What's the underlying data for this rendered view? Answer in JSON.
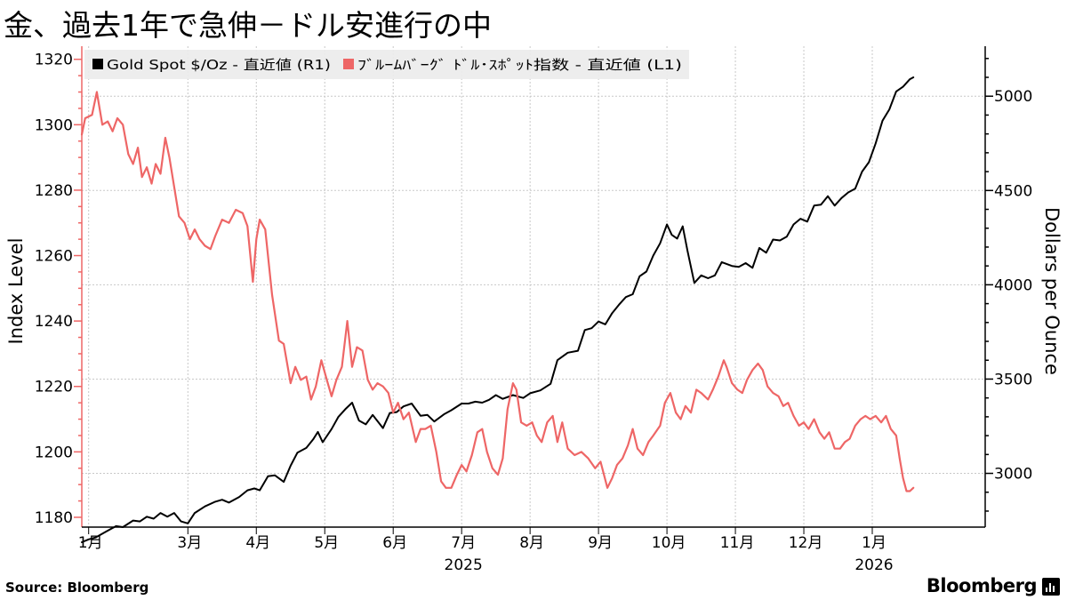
{
  "title": "金、過去1年で急伸－ドル安進行の中",
  "source": "Source:  Bloomberg",
  "brand": "Bloomberg",
  "chart_data": {
    "type": "line",
    "legend_position": "top-left",
    "grid": true,
    "ylabel_left": "Index Level",
    "ylabel_right": "Dollars per Ounce",
    "ylim_left": [
      1177,
      1324
    ],
    "ylim_right": [
      2715,
      5265
    ],
    "yticks_left": [
      1180,
      1200,
      1220,
      1240,
      1260,
      1280,
      1300,
      1320
    ],
    "yticks_right": [
      3000,
      3500,
      4000,
      4500,
      5000
    ],
    "xlim": [
      0,
      13.2
    ],
    "x_units": "months from early Jan 2025",
    "month_ticks": [
      {
        "label": "1月",
        "x": 0.1
      },
      {
        "label": "3月",
        "x": 1.55
      },
      {
        "label": "4月",
        "x": 2.55
      },
      {
        "label": "5月",
        "x": 3.55
      },
      {
        "label": "6月",
        "x": 4.55
      },
      {
        "label": "7月",
        "x": 5.55
      },
      {
        "label": "8月",
        "x": 6.55
      },
      {
        "label": "9月",
        "x": 7.55
      },
      {
        "label": "10月",
        "x": 8.55
      },
      {
        "label": "11月",
        "x": 9.55
      },
      {
        "label": "12月",
        "x": 10.55
      },
      {
        "label": "1月",
        "x": 11.55
      }
    ],
    "year_labels": [
      {
        "label": "2025",
        "x": 5.55
      },
      {
        "label": "2026",
        "x": 11.55
      }
    ],
    "series": [
      {
        "name": "Gold Spot $/Oz - 直近値 (R1)",
        "axis": "right",
        "color": "#000000",
        "points": [
          [
            0.0,
            2635
          ],
          [
            0.1,
            2650
          ],
          [
            0.2,
            2660
          ],
          [
            0.35,
            2690
          ],
          [
            0.5,
            2720
          ],
          [
            0.6,
            2715
          ],
          [
            0.75,
            2750
          ],
          [
            0.85,
            2745
          ],
          [
            0.95,
            2770
          ],
          [
            1.05,
            2760
          ],
          [
            1.15,
            2790
          ],
          [
            1.25,
            2770
          ],
          [
            1.35,
            2790
          ],
          [
            1.45,
            2745
          ],
          [
            1.55,
            2735
          ],
          [
            1.65,
            2790
          ],
          [
            1.8,
            2825
          ],
          [
            1.95,
            2850
          ],
          [
            2.05,
            2860
          ],
          [
            2.15,
            2845
          ],
          [
            2.3,
            2875
          ],
          [
            2.42,
            2910
          ],
          [
            2.52,
            2920
          ],
          [
            2.6,
            2910
          ],
          [
            2.72,
            2985
          ],
          [
            2.82,
            2990
          ],
          [
            2.95,
            2955
          ],
          [
            3.05,
            3040
          ],
          [
            3.15,
            3110
          ],
          [
            3.28,
            3135
          ],
          [
            3.38,
            3180
          ],
          [
            3.45,
            3220
          ],
          [
            3.52,
            3165
          ],
          [
            3.65,
            3235
          ],
          [
            3.75,
            3300
          ],
          [
            3.85,
            3340
          ],
          [
            3.95,
            3375
          ],
          [
            4.05,
            3280
          ],
          [
            4.15,
            3260
          ],
          [
            4.25,
            3310
          ],
          [
            4.4,
            3240
          ],
          [
            4.5,
            3320
          ],
          [
            4.6,
            3325
          ],
          [
            4.7,
            3355
          ],
          [
            4.82,
            3370
          ],
          [
            4.95,
            3305
          ],
          [
            5.05,
            3310
          ],
          [
            5.15,
            3275
          ],
          [
            5.3,
            3315
          ],
          [
            5.4,
            3335
          ],
          [
            5.55,
            3370
          ],
          [
            5.65,
            3370
          ],
          [
            5.75,
            3380
          ],
          [
            5.85,
            3375
          ],
          [
            5.95,
            3390
          ],
          [
            6.05,
            3415
          ],
          [
            6.15,
            3395
          ],
          [
            6.3,
            3415
          ],
          [
            6.45,
            3400
          ],
          [
            6.55,
            3425
          ],
          [
            6.7,
            3440
          ],
          [
            6.85,
            3475
          ],
          [
            6.95,
            3600
          ],
          [
            7.1,
            3640
          ],
          [
            7.25,
            3650
          ],
          [
            7.35,
            3760
          ],
          [
            7.45,
            3770
          ],
          [
            7.55,
            3805
          ],
          [
            7.65,
            3790
          ],
          [
            7.75,
            3850
          ],
          [
            7.85,
            3895
          ],
          [
            7.95,
            3935
          ],
          [
            8.05,
            3950
          ],
          [
            8.15,
            4045
          ],
          [
            8.25,
            4070
          ],
          [
            8.35,
            4155
          ],
          [
            8.45,
            4220
          ],
          [
            8.55,
            4320
          ],
          [
            8.62,
            4265
          ],
          [
            8.7,
            4245
          ],
          [
            8.78,
            4310
          ],
          [
            8.85,
            4180
          ],
          [
            8.95,
            4010
          ],
          [
            9.05,
            4050
          ],
          [
            9.15,
            4035
          ],
          [
            9.25,
            4050
          ],
          [
            9.35,
            4120
          ],
          [
            9.5,
            4100
          ],
          [
            9.6,
            4095
          ],
          [
            9.7,
            4115
          ],
          [
            9.8,
            4090
          ],
          [
            9.9,
            4195
          ],
          [
            10.0,
            4170
          ],
          [
            10.1,
            4240
          ],
          [
            10.2,
            4235
          ],
          [
            10.3,
            4255
          ],
          [
            10.4,
            4320
          ],
          [
            10.5,
            4350
          ],
          [
            10.6,
            4335
          ],
          [
            10.7,
            4420
          ],
          [
            10.8,
            4425
          ],
          [
            10.9,
            4470
          ],
          [
            11.0,
            4420
          ],
          [
            11.1,
            4460
          ],
          [
            11.2,
            4490
          ],
          [
            11.3,
            4510
          ],
          [
            11.4,
            4600
          ],
          [
            11.5,
            4650
          ],
          [
            11.6,
            4750
          ],
          [
            11.7,
            4870
          ],
          [
            11.8,
            4930
          ],
          [
            11.9,
            5025
          ],
          [
            12.0,
            5050
          ],
          [
            12.1,
            5090
          ],
          [
            12.15,
            5100
          ]
        ]
      },
      {
        "name": "ﾌﾞﾙｰﾑﾊﾞｰｸﾞ ﾄﾞﾙ･ｽﾎﾟｯﾄ指数 - 直近値 (L1)",
        "axis": "left",
        "color": "#ee6666",
        "points": [
          [
            0.0,
            1297
          ],
          [
            0.05,
            1302
          ],
          [
            0.15,
            1303
          ],
          [
            0.22,
            1310
          ],
          [
            0.3,
            1300
          ],
          [
            0.38,
            1301
          ],
          [
            0.45,
            1298
          ],
          [
            0.52,
            1302
          ],
          [
            0.6,
            1300
          ],
          [
            0.68,
            1291
          ],
          [
            0.75,
            1288
          ],
          [
            0.82,
            1293
          ],
          [
            0.88,
            1284
          ],
          [
            0.95,
            1287
          ],
          [
            1.02,
            1282
          ],
          [
            1.08,
            1288
          ],
          [
            1.15,
            1285
          ],
          [
            1.22,
            1296
          ],
          [
            1.28,
            1290
          ],
          [
            1.35,
            1281
          ],
          [
            1.42,
            1272
          ],
          [
            1.5,
            1270
          ],
          [
            1.58,
            1265
          ],
          [
            1.65,
            1268
          ],
          [
            1.72,
            1265
          ],
          [
            1.8,
            1263
          ],
          [
            1.88,
            1262
          ],
          [
            1.95,
            1266
          ],
          [
            2.05,
            1271
          ],
          [
            2.15,
            1270
          ],
          [
            2.25,
            1274
          ],
          [
            2.35,
            1273
          ],
          [
            2.42,
            1269
          ],
          [
            2.5,
            1252
          ],
          [
            2.55,
            1265
          ],
          [
            2.6,
            1271
          ],
          [
            2.68,
            1268
          ],
          [
            2.78,
            1248
          ],
          [
            2.88,
            1234
          ],
          [
            2.95,
            1233
          ],
          [
            3.05,
            1221
          ],
          [
            3.12,
            1226
          ],
          [
            3.2,
            1222
          ],
          [
            3.28,
            1223
          ],
          [
            3.35,
            1216
          ],
          [
            3.42,
            1220
          ],
          [
            3.5,
            1228
          ],
          [
            3.58,
            1222
          ],
          [
            3.65,
            1217
          ],
          [
            3.72,
            1222
          ],
          [
            3.8,
            1226
          ],
          [
            3.88,
            1240
          ],
          [
            3.95,
            1226
          ],
          [
            4.02,
            1232
          ],
          [
            4.1,
            1231
          ],
          [
            4.18,
            1222
          ],
          [
            4.25,
            1219
          ],
          [
            4.32,
            1221
          ],
          [
            4.4,
            1220
          ],
          [
            4.48,
            1218
          ],
          [
            4.55,
            1212
          ],
          [
            4.62,
            1215
          ],
          [
            4.7,
            1210
          ],
          [
            4.78,
            1212
          ],
          [
            4.88,
            1203
          ],
          [
            4.95,
            1207
          ],
          [
            5.02,
            1207
          ],
          [
            5.1,
            1208
          ],
          [
            5.18,
            1200
          ],
          [
            5.25,
            1191
          ],
          [
            5.32,
            1189
          ],
          [
            5.4,
            1189
          ],
          [
            5.48,
            1193
          ],
          [
            5.55,
            1196
          ],
          [
            5.62,
            1194
          ],
          [
            5.7,
            1199
          ],
          [
            5.78,
            1206
          ],
          [
            5.85,
            1207
          ],
          [
            5.92,
            1200
          ],
          [
            6.0,
            1195
          ],
          [
            6.08,
            1193
          ],
          [
            6.15,
            1198
          ],
          [
            6.22,
            1213
          ],
          [
            6.3,
            1221
          ],
          [
            6.35,
            1219
          ],
          [
            6.42,
            1209
          ],
          [
            6.5,
            1208
          ],
          [
            6.58,
            1209
          ],
          [
            6.65,
            1205
          ],
          [
            6.72,
            1203
          ],
          [
            6.8,
            1209
          ],
          [
            6.88,
            1211
          ],
          [
            6.95,
            1203
          ],
          [
            7.02,
            1209
          ],
          [
            7.1,
            1201
          ],
          [
            7.2,
            1199
          ],
          [
            7.3,
            1200
          ],
          [
            7.4,
            1198
          ],
          [
            7.5,
            1195
          ],
          [
            7.58,
            1197
          ],
          [
            7.68,
            1189
          ],
          [
            7.75,
            1192
          ],
          [
            7.82,
            1196
          ],
          [
            7.9,
            1198
          ],
          [
            7.98,
            1202
          ],
          [
            8.05,
            1207
          ],
          [
            8.12,
            1201
          ],
          [
            8.2,
            1199
          ],
          [
            8.28,
            1203
          ],
          [
            8.35,
            1205
          ],
          [
            8.45,
            1208
          ],
          [
            8.52,
            1215
          ],
          [
            8.6,
            1218
          ],
          [
            8.68,
            1212
          ],
          [
            8.75,
            1210
          ],
          [
            8.82,
            1214
          ],
          [
            8.9,
            1212
          ],
          [
            8.98,
            1219
          ],
          [
            9.05,
            1218
          ],
          [
            9.15,
            1216
          ],
          [
            9.22,
            1219
          ],
          [
            9.3,
            1223
          ],
          [
            9.38,
            1228
          ],
          [
            9.42,
            1226
          ],
          [
            9.5,
            1221
          ],
          [
            9.58,
            1219
          ],
          [
            9.65,
            1218
          ],
          [
            9.72,
            1222
          ],
          [
            9.8,
            1225
          ],
          [
            9.88,
            1227
          ],
          [
            9.95,
            1225
          ],
          [
            10.02,
            1220
          ],
          [
            10.1,
            1218
          ],
          [
            10.18,
            1217
          ],
          [
            10.25,
            1214
          ],
          [
            10.32,
            1215
          ],
          [
            10.4,
            1211
          ],
          [
            10.48,
            1208
          ],
          [
            10.55,
            1209
          ],
          [
            10.62,
            1207
          ],
          [
            10.7,
            1210
          ],
          [
            10.78,
            1206
          ],
          [
            10.85,
            1204
          ],
          [
            10.92,
            1206
          ],
          [
            11.0,
            1201
          ],
          [
            11.08,
            1201
          ],
          [
            11.15,
            1203
          ],
          [
            11.22,
            1204
          ],
          [
            11.3,
            1208
          ],
          [
            11.38,
            1210
          ],
          [
            11.45,
            1211
          ],
          [
            11.52,
            1210
          ],
          [
            11.6,
            1211
          ],
          [
            11.68,
            1209
          ],
          [
            11.75,
            1211
          ],
          [
            11.82,
            1207
          ],
          [
            11.9,
            1205
          ],
          [
            11.95,
            1198
          ],
          [
            12.0,
            1192
          ],
          [
            12.05,
            1188
          ],
          [
            12.1,
            1188
          ],
          [
            12.15,
            1189
          ]
        ]
      }
    ]
  }
}
